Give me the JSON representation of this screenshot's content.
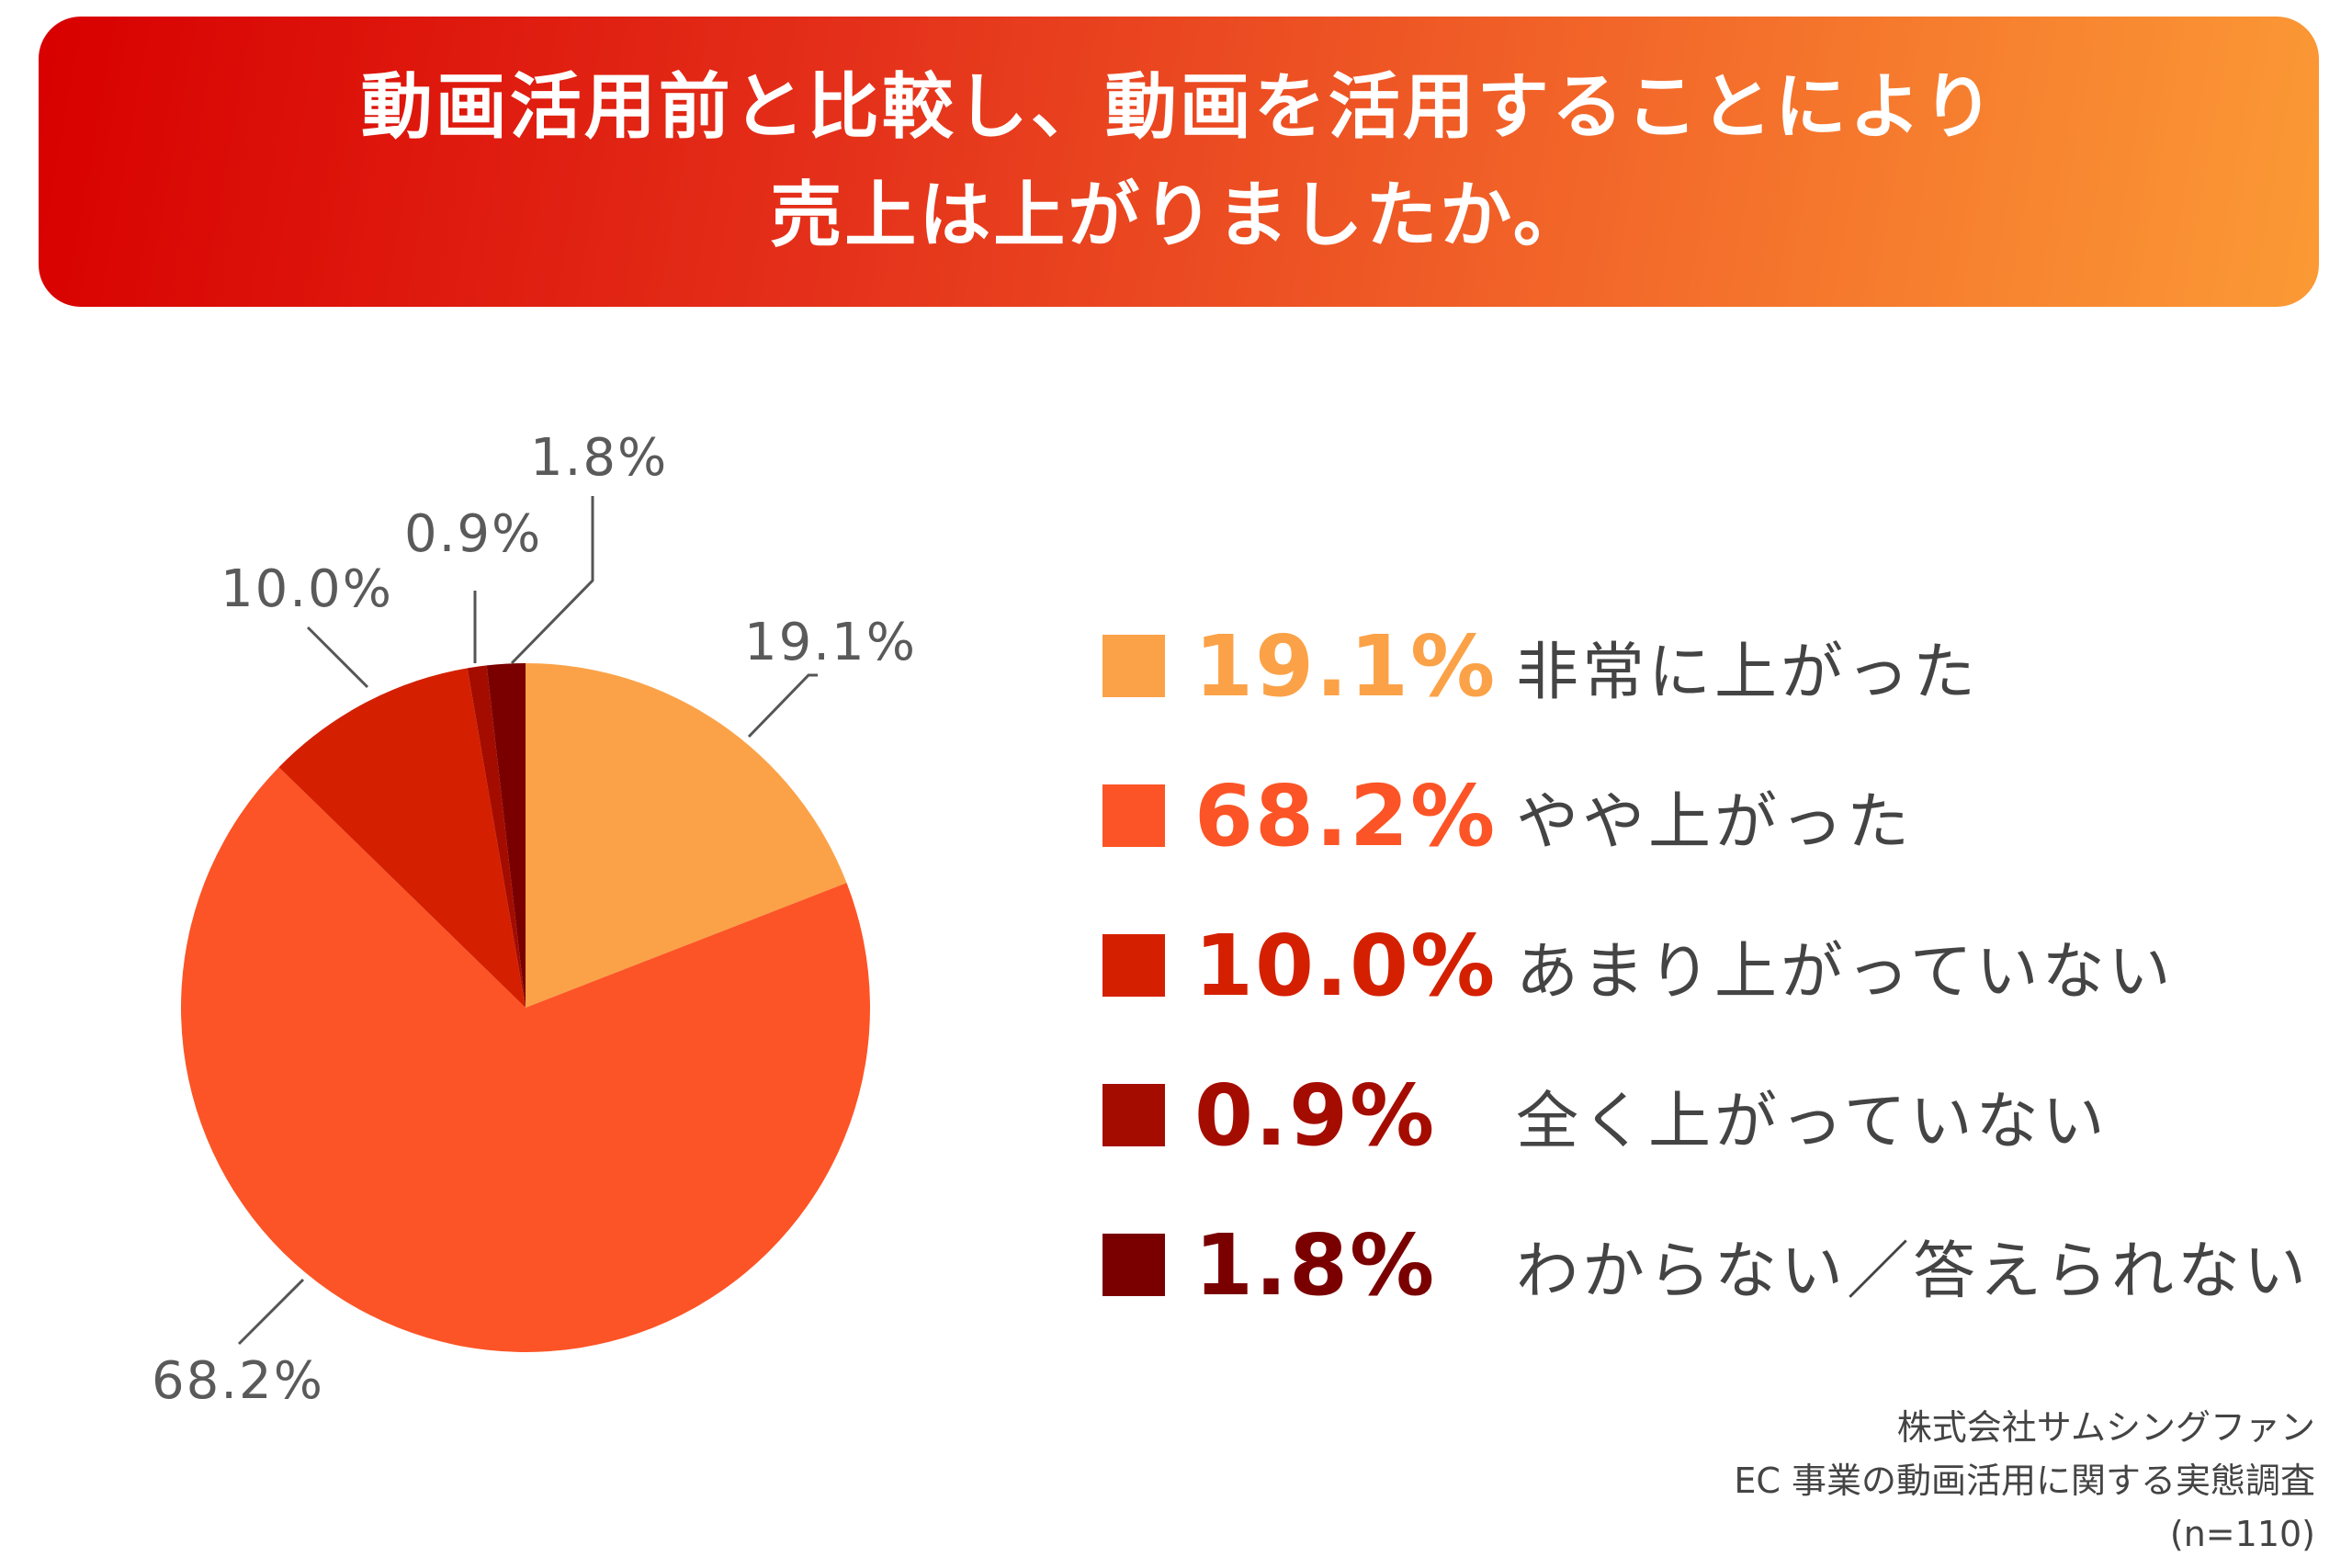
{
  "header": {
    "title_line1": "動画活用前と比較し、動画を活用することにより",
    "title_line2": "売上は上がりましたか。"
  },
  "chart_data": {
    "type": "pie",
    "categories": [
      "非常に上がった",
      "やや上がった",
      "あまり上がっていない",
      "全く上がっていない",
      "わからない／答えられない"
    ],
    "values": [
      19.1,
      68.2,
      10.0,
      0.9,
      1.8
    ],
    "value_labels": [
      "19.1%",
      "68.2%",
      "10.0%",
      "0.9%",
      "1.8%"
    ],
    "colors": [
      "#fba248",
      "#fc5426",
      "#d42000",
      "#a50c00",
      "#7a0000"
    ],
    "title": "動画活用前と比較し、動画を活用することにより売上は上がりましたか。",
    "start": "12 o'clock",
    "direction": "clockwise",
    "legend_position": "right"
  },
  "source": {
    "line1": "株式会社サムシングファン",
    "line2": "EC 事業の動画活用に関する実態調査",
    "line3": "(n=110)"
  }
}
